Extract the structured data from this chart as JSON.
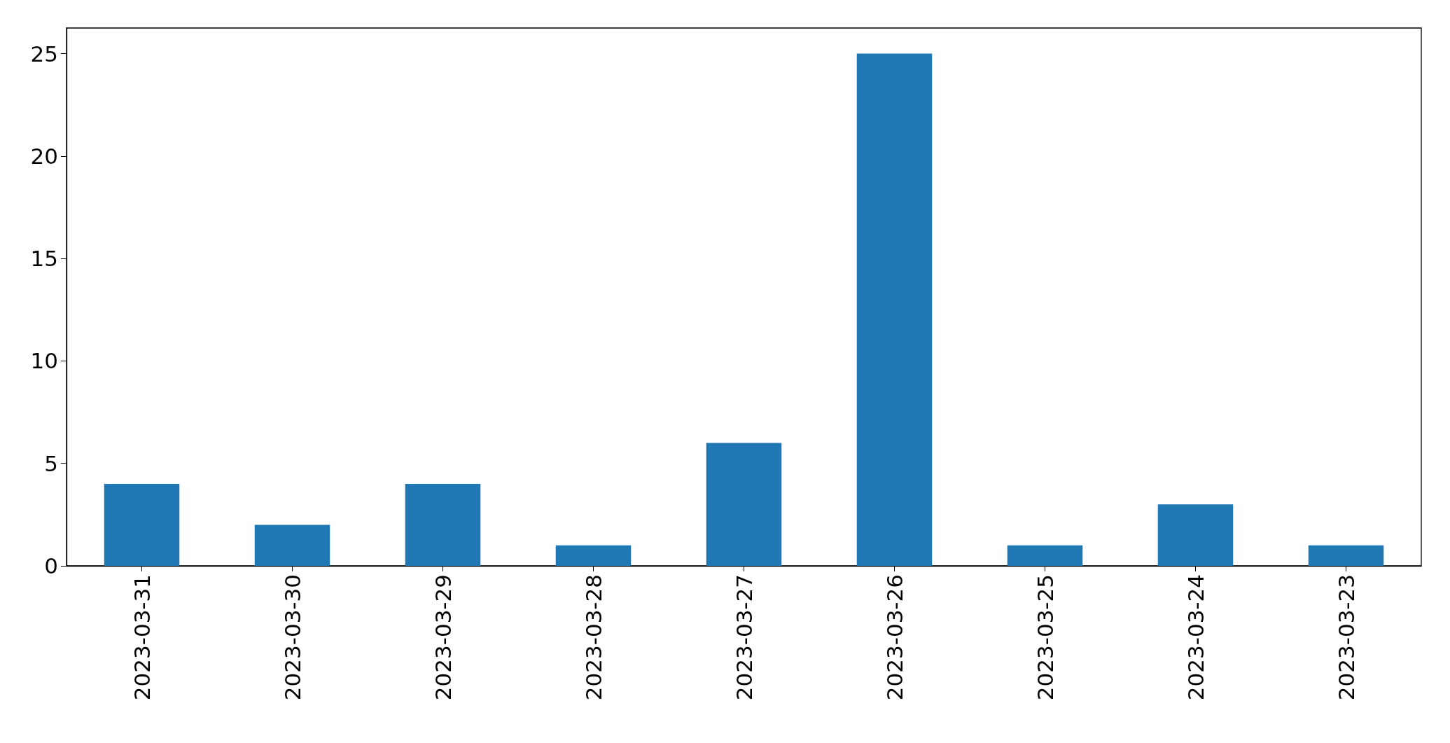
{
  "chart_data": {
    "type": "bar",
    "categories": [
      "2023-03-31",
      "2023-03-30",
      "2023-03-29",
      "2023-03-28",
      "2023-03-27",
      "2023-03-26",
      "2023-03-25",
      "2023-03-24",
      "2023-03-23"
    ],
    "values": [
      4,
      2,
      4,
      1,
      6,
      25,
      1,
      3,
      1
    ],
    "color": "#1f77b4",
    "ylim": [
      0,
      26.25
    ],
    "yticks": [
      0,
      5,
      10,
      15,
      20,
      25
    ],
    "grid": false
  }
}
